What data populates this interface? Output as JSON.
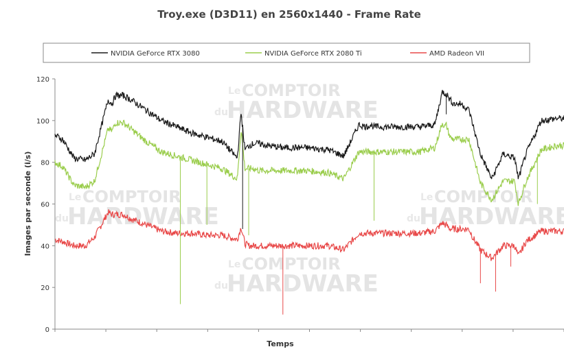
{
  "chart_data": {
    "type": "line",
    "title": "Troy.exe (D3D11) en 2560x1440 - Frame Rate",
    "xlabel": "Temps",
    "ylabel": "Images par seconde (i/s)",
    "ylim": [
      0,
      120
    ],
    "yticks": [
      "0",
      "20",
      "40",
      "60",
      "80",
      "100",
      "120"
    ],
    "x_count": 10,
    "legend_position": "top",
    "grid": false,
    "series": [
      {
        "name": "NVIDIA GeForce RTX 3080",
        "color": "#1a1a1a",
        "x": [
          0,
          10,
          25,
          40,
          52,
          70,
          75,
          80,
          90,
          100,
          120,
          140,
          160,
          180,
          200,
          220,
          240,
          245,
          250,
          255,
          262,
          268,
          280,
          300,
          330,
          360,
          380,
          400,
          410,
          415,
          420,
          430,
          450,
          480,
          500,
          510,
          513,
          515,
          520,
          525,
          535,
          545,
          550,
          560,
          575,
          590,
          605,
          610,
          620,
          640,
          660,
          670
        ],
        "values": [
          93,
          91,
          82,
          81,
          84,
          110,
          108,
          112,
          112,
          110,
          105,
          100,
          97,
          94,
          92,
          90,
          82,
          104,
          86,
          88,
          89,
          89,
          88,
          87,
          87,
          86,
          83,
          98,
          97,
          98,
          97,
          97,
          97,
          97,
          98,
          114,
          113,
          113,
          110,
          108,
          108,
          105,
          98,
          84,
          72,
          84,
          82,
          72,
          84,
          100,
          101,
          101
        ],
        "spikes": [
          [
            247,
            48
          ],
          [
            515,
            103
          ]
        ]
      },
      {
        "name": "NVIDIA GeForce RTX 2080 Ti",
        "color": "#9acd4c",
        "x": [
          0,
          10,
          25,
          40,
          52,
          70,
          75,
          80,
          90,
          100,
          120,
          140,
          160,
          180,
          200,
          220,
          240,
          245,
          250,
          255,
          262,
          268,
          280,
          300,
          330,
          360,
          380,
          400,
          410,
          415,
          420,
          430,
          450,
          480,
          500,
          510,
          513,
          515,
          520,
          525,
          535,
          545,
          550,
          560,
          575,
          590,
          605,
          610,
          620,
          640,
          660,
          670
        ],
        "values": [
          80,
          78,
          69,
          68,
          71,
          96,
          95,
          99,
          99,
          96,
          90,
          85,
          83,
          81,
          79,
          77,
          72,
          96,
          77,
          77,
          77,
          76,
          76,
          76,
          76,
          75,
          72,
          85,
          85,
          85,
          85,
          85,
          85,
          85,
          87,
          99,
          97,
          98,
          92,
          91,
          91,
          91,
          84,
          70,
          62,
          71,
          71,
          60,
          71,
          86,
          88,
          88
        ],
        "spikes": [
          [
            165,
            12
          ],
          [
            200,
            50
          ],
          [
            255,
            45
          ],
          [
            420,
            52
          ],
          [
            635,
            60
          ]
        ]
      },
      {
        "name": "AMD Radeon VII",
        "color": "#e84848",
        "x": [
          0,
          10,
          25,
          40,
          52,
          70,
          75,
          80,
          90,
          100,
          120,
          140,
          160,
          180,
          200,
          220,
          240,
          245,
          250,
          255,
          262,
          268,
          280,
          300,
          330,
          360,
          380,
          400,
          410,
          415,
          420,
          430,
          450,
          480,
          500,
          510,
          513,
          515,
          520,
          525,
          535,
          545,
          550,
          560,
          575,
          590,
          605,
          610,
          620,
          640,
          660,
          670
        ],
        "values": [
          43,
          42,
          40,
          40,
          44,
          56,
          55,
          55,
          55,
          53,
          50,
          47,
          46,
          46,
          45,
          45,
          43,
          49,
          41,
          40,
          40,
          40,
          40,
          40,
          40,
          40,
          38,
          46,
          46,
          46,
          46,
          46,
          46,
          46,
          47,
          51,
          50,
          50,
          48,
          48,
          48,
          48,
          44,
          38,
          34,
          40,
          40,
          35,
          42,
          47,
          47,
          47
        ],
        "spikes": [
          [
            300,
            7
          ],
          [
            560,
            22
          ],
          [
            580,
            18
          ],
          [
            600,
            30
          ]
        ]
      }
    ]
  }
}
